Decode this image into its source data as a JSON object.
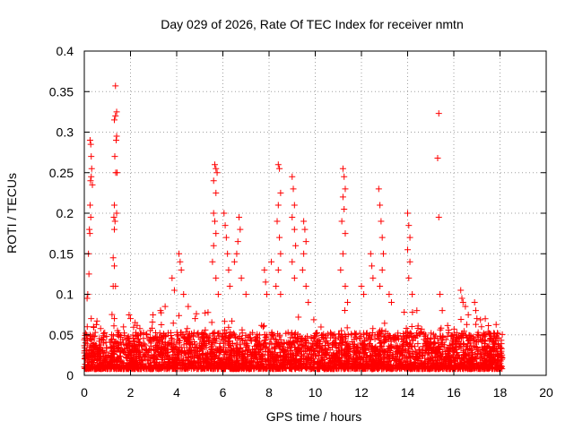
{
  "chart_data": {
    "type": "scatter",
    "title": "Day 029 of 2026, Rate Of TEC Index for receiver nmtn",
    "xlabel": "GPS time / hours",
    "ylabel": "ROTI / TECUs",
    "xlim": [
      0,
      20
    ],
    "ylim": [
      0,
      0.4
    ],
    "x_ticks": [
      "0",
      "2",
      "4",
      "6",
      "8",
      "10",
      "12",
      "14",
      "16",
      "18",
      "20"
    ],
    "y_ticks": [
      "0",
      "0.05",
      "0.1",
      "0.15",
      "0.2",
      "0.25",
      "0.3",
      "0.35",
      "0.4"
    ],
    "x_tick_values": [
      0,
      2,
      4,
      6,
      8,
      10,
      12,
      14,
      16,
      18,
      20
    ],
    "y_tick_values": [
      0,
      0.05,
      0.1,
      0.15,
      0.2,
      0.25,
      0.3,
      0.35,
      0.4
    ],
    "grid": true,
    "marker": "+",
    "marker_color": "#ff0000",
    "data_x_range": [
      0,
      18.1
    ],
    "series": [
      {
        "name": "ROTI",
        "points": [
          [
            0.25,
            0.29
          ],
          [
            0.28,
            0.285
          ],
          [
            0.3,
            0.27
          ],
          [
            0.32,
            0.255
          ],
          [
            0.3,
            0.245
          ],
          [
            0.27,
            0.24
          ],
          [
            0.35,
            0.235
          ],
          [
            0.25,
            0.21
          ],
          [
            0.28,
            0.195
          ],
          [
            0.22,
            0.18
          ],
          [
            0.24,
            0.175
          ],
          [
            0.18,
            0.15
          ],
          [
            0.2,
            0.125
          ],
          [
            0.15,
            0.1
          ],
          [
            0.12,
            0.095
          ],
          [
            0.3,
            0.07
          ],
          [
            0.4,
            0.06
          ],
          [
            0.1,
            0.05
          ],
          [
            0.05,
            0.04
          ],
          [
            1.35,
            0.357
          ],
          [
            1.4,
            0.325
          ],
          [
            1.35,
            0.32
          ],
          [
            1.3,
            0.315
          ],
          [
            1.4,
            0.295
          ],
          [
            1.38,
            0.29
          ],
          [
            1.32,
            0.27
          ],
          [
            1.36,
            0.25
          ],
          [
            1.42,
            0.25
          ],
          [
            1.3,
            0.21
          ],
          [
            1.4,
            0.2
          ],
          [
            1.28,
            0.195
          ],
          [
            1.33,
            0.19
          ],
          [
            1.3,
            0.18
          ],
          [
            1.25,
            0.145
          ],
          [
            1.3,
            0.135
          ],
          [
            1.25,
            0.11
          ],
          [
            1.35,
            0.11
          ],
          [
            1.2,
            0.075
          ],
          [
            1.3,
            0.07
          ],
          [
            2.0,
            0.07
          ],
          [
            2.2,
            0.065
          ],
          [
            3.3,
            0.08
          ],
          [
            3.5,
            0.085
          ],
          [
            3.8,
            0.12
          ],
          [
            3.9,
            0.105
          ],
          [
            4.1,
            0.15
          ],
          [
            4.15,
            0.14
          ],
          [
            4.2,
            0.13
          ],
          [
            4.3,
            0.1
          ],
          [
            4.5,
            0.085
          ],
          [
            4.8,
            0.07
          ],
          [
            5.65,
            0.26
          ],
          [
            5.7,
            0.255
          ],
          [
            5.75,
            0.25
          ],
          [
            5.6,
            0.24
          ],
          [
            5.7,
            0.225
          ],
          [
            5.6,
            0.2
          ],
          [
            5.65,
            0.19
          ],
          [
            5.7,
            0.175
          ],
          [
            5.6,
            0.16
          ],
          [
            5.55,
            0.14
          ],
          [
            5.7,
            0.12
          ],
          [
            5.8,
            0.1
          ],
          [
            6.05,
            0.2
          ],
          [
            6.1,
            0.185
          ],
          [
            6.15,
            0.17
          ],
          [
            6.2,
            0.15
          ],
          [
            6.25,
            0.13
          ],
          [
            6.3,
            0.11
          ],
          [
            6.7,
            0.195
          ],
          [
            6.75,
            0.18
          ],
          [
            6.65,
            0.165
          ],
          [
            6.6,
            0.15
          ],
          [
            6.5,
            0.14
          ],
          [
            6.8,
            0.12
          ],
          [
            7.0,
            0.1
          ],
          [
            7.8,
            0.13
          ],
          [
            7.85,
            0.115
          ],
          [
            7.9,
            0.1
          ],
          [
            8.1,
            0.14
          ],
          [
            8.4,
            0.26
          ],
          [
            8.45,
            0.255
          ],
          [
            8.5,
            0.225
          ],
          [
            8.4,
            0.21
          ],
          [
            8.35,
            0.19
          ],
          [
            8.45,
            0.17
          ],
          [
            8.5,
            0.15
          ],
          [
            8.4,
            0.13
          ],
          [
            8.3,
            0.11
          ],
          [
            8.5,
            0.1
          ],
          [
            9.0,
            0.245
          ],
          [
            9.05,
            0.23
          ],
          [
            9.1,
            0.21
          ],
          [
            9.0,
            0.195
          ],
          [
            9.1,
            0.18
          ],
          [
            9.15,
            0.16
          ],
          [
            9.0,
            0.14
          ],
          [
            9.1,
            0.12
          ],
          [
            9.5,
            0.19
          ],
          [
            9.55,
            0.18
          ],
          [
            9.6,
            0.165
          ],
          [
            9.5,
            0.15
          ],
          [
            9.45,
            0.13
          ],
          [
            9.6,
            0.11
          ],
          [
            9.7,
            0.09
          ],
          [
            11.2,
            0.255
          ],
          [
            11.25,
            0.245
          ],
          [
            11.3,
            0.23
          ],
          [
            11.2,
            0.22
          ],
          [
            11.25,
            0.205
          ],
          [
            11.15,
            0.19
          ],
          [
            11.3,
            0.175
          ],
          [
            11.2,
            0.15
          ],
          [
            11.1,
            0.13
          ],
          [
            11.3,
            0.11
          ],
          [
            11.4,
            0.09
          ],
          [
            12.0,
            0.11
          ],
          [
            12.1,
            0.1
          ],
          [
            12.4,
            0.15
          ],
          [
            12.45,
            0.135
          ],
          [
            12.5,
            0.12
          ],
          [
            12.75,
            0.23
          ],
          [
            12.8,
            0.21
          ],
          [
            12.85,
            0.19
          ],
          [
            12.9,
            0.17
          ],
          [
            12.95,
            0.15
          ],
          [
            12.9,
            0.13
          ],
          [
            12.8,
            0.11
          ],
          [
            13.2,
            0.1
          ],
          [
            13.3,
            0.09
          ],
          [
            14.0,
            0.2
          ],
          [
            14.05,
            0.185
          ],
          [
            14.1,
            0.17
          ],
          [
            14.0,
            0.155
          ],
          [
            14.1,
            0.14
          ],
          [
            14.05,
            0.12
          ],
          [
            14.2,
            0.1
          ],
          [
            14.4,
            0.08
          ],
          [
            15.35,
            0.323
          ],
          [
            15.3,
            0.268
          ],
          [
            15.35,
            0.195
          ],
          [
            15.4,
            0.1
          ],
          [
            15.5,
            0.08
          ],
          [
            16.3,
            0.105
          ],
          [
            16.35,
            0.095
          ],
          [
            16.4,
            0.09
          ],
          [
            16.5,
            0.085
          ],
          [
            16.9,
            0.09
          ],
          [
            16.95,
            0.08
          ],
          [
            17.0,
            0.07
          ],
          [
            17.2,
            0.06
          ]
        ]
      }
    ]
  }
}
